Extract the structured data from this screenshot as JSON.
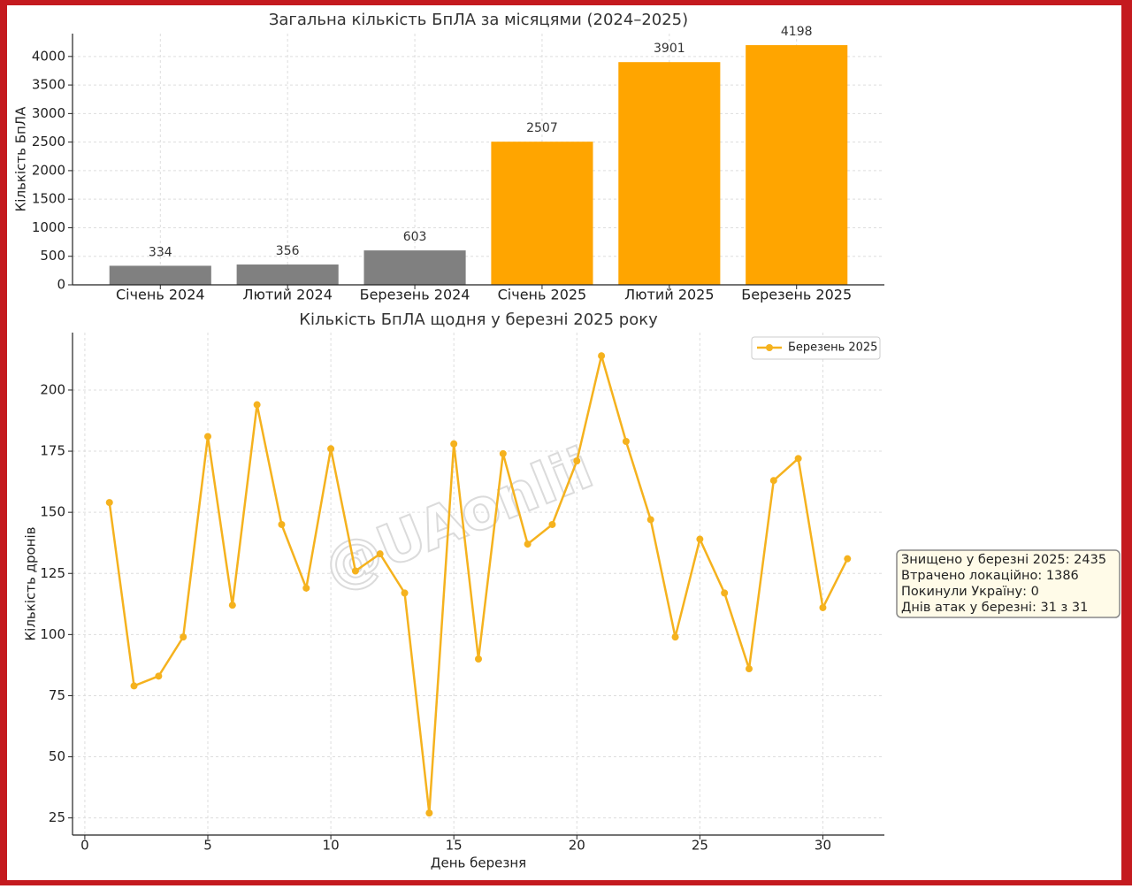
{
  "chart_data": [
    {
      "type": "bar",
      "title": "Загальна кількість БпЛА за місяцями (2024–2025)",
      "ylabel": "Кількість БпЛА",
      "categories": [
        "Січень 2024",
        "Лютий 2024",
        "Березень 2024",
        "Січень 2025",
        "Лютий 2025",
        "Березень 2025"
      ],
      "values": [
        334,
        356,
        603,
        2507,
        3901,
        4198
      ],
      "colors": [
        "#808080",
        "#808080",
        "#808080",
        "#ffa500",
        "#ffa500",
        "#ffa500"
      ],
      "ylim": [
        0,
        4400
      ],
      "yticks": [
        0,
        500,
        1000,
        1500,
        2000,
        2500,
        3000,
        3500,
        4000
      ],
      "grid": true
    },
    {
      "type": "line",
      "title": "Кількість БпЛА щодня у березні 2025 року",
      "xlabel": "День березня",
      "ylabel": "Кількість дронів",
      "x": [
        1,
        2,
        3,
        4,
        5,
        6,
        7,
        8,
        9,
        10,
        11,
        12,
        13,
        14,
        15,
        16,
        17,
        18,
        19,
        20,
        21,
        22,
        23,
        24,
        25,
        26,
        27,
        28,
        29,
        30,
        31
      ],
      "series": [
        {
          "name": "Березень 2025",
          "color": "#f5b21e",
          "values": [
            154,
            79,
            83,
            99,
            181,
            112,
            194,
            145,
            119,
            176,
            126,
            133,
            117,
            27,
            178,
            90,
            174,
            137,
            145,
            171,
            214,
            179,
            147,
            99,
            139,
            117,
            86,
            163,
            172,
            111,
            131
          ]
        }
      ],
      "xlim": [
        -0.5,
        32.5
      ],
      "xticks": [
        0,
        5,
        10,
        15,
        20,
        25,
        30
      ],
      "ylim": [
        18,
        223.5
      ],
      "yticks": [
        25,
        50,
        75,
        100,
        125,
        150,
        175,
        200
      ],
      "grid": true,
      "legend": "upper right",
      "annotation_lines": [
        "Знищено у березні 2025: 2435",
        "Втрачено локаційно: 1386",
        "Покинули Україну: 0",
        "Днів атак у березні: 31 з 31"
      ],
      "watermark": "@UAonlii"
    }
  ]
}
